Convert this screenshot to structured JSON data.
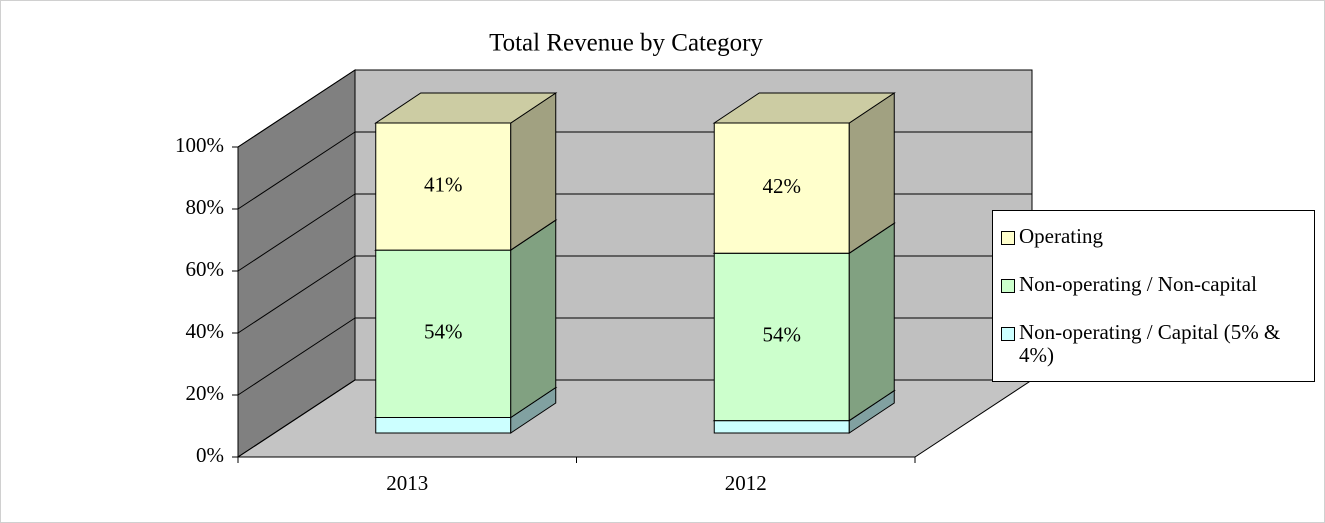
{
  "chart_data": {
    "type": "bar3d_stacked",
    "title": "Total Revenue by Category",
    "categories": [
      "2013",
      "2012"
    ],
    "series": [
      {
        "name": "Non-operating / Capital (5% & 4%)",
        "color": "#ccffff",
        "values": [
          5,
          4
        ]
      },
      {
        "name": "Non-operating / Non-capital",
        "color": "#ccffcc",
        "values": [
          54,
          54
        ],
        "value_labels": [
          "54%",
          "54%"
        ]
      },
      {
        "name": "Operating",
        "color": "#ffffcc",
        "values": [
          41,
          42
        ],
        "value_labels": [
          "41%",
          "42%"
        ]
      }
    ],
    "ylim": [
      0,
      100
    ],
    "yticks": [
      {
        "value": 0,
        "label": "0%"
      },
      {
        "value": 20,
        "label": "20%"
      },
      {
        "value": 40,
        "label": "40%"
      },
      {
        "value": 60,
        "label": "60%"
      },
      {
        "value": 80,
        "label": "80%"
      },
      {
        "value": 100,
        "label": "100%"
      }
    ],
    "grid": true,
    "legend": "right"
  }
}
